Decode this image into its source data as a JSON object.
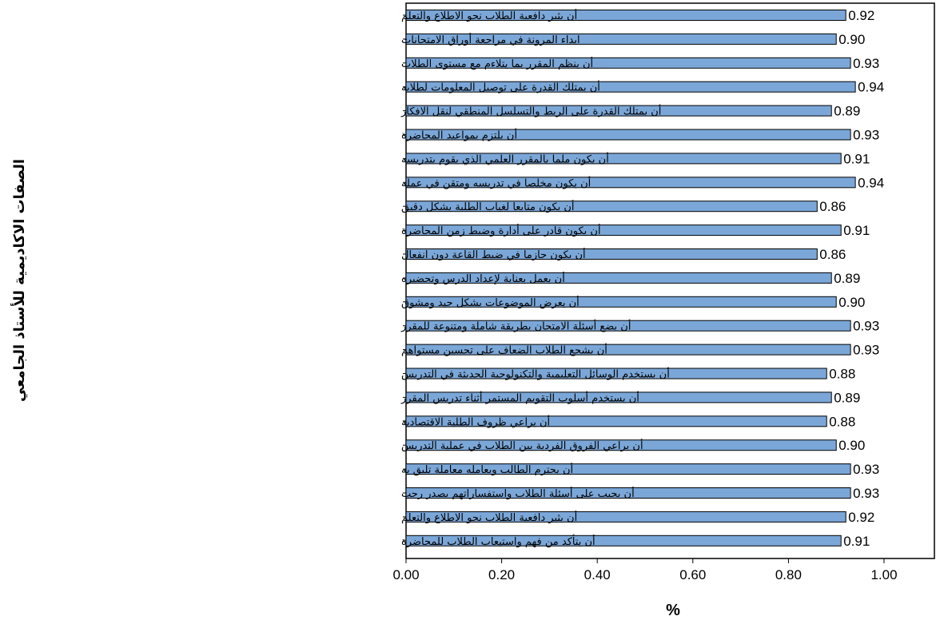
{
  "chart_data": {
    "type": "bar",
    "orientation": "horizontal",
    "title": "",
    "xlabel": "%",
    "ylabel": "الصفات الاكاديمية للأستاذ الجامعي",
    "xlim": [
      0,
      1.0
    ],
    "xticks": [
      "0.00",
      "0.20",
      "0.40",
      "0.60",
      "0.80",
      "1.00"
    ],
    "grid": false,
    "bar_color": "#7ba7d8",
    "categories": [
      "أن يثير دافعية الطلاب نحو الاطلاع والتعلم",
      "ابداء المرونة في مراجعة أوراق الامتحانات",
      "أن ينظم المقرر بما يتلاءم مع مستوى الطلاب",
      "أن يمتلك القدرة على توصيل المعلومات لطلابه",
      "أن يمتلك القدرة على الربط والتسلسل المنطقي لنقل الافكار",
      "أن يلتزم بمواعيد المحاضرة",
      "أن يكون ملما بالمقرر العلمي الذي يقوم بتدريسه",
      "أن يكون مخلصا في تدريسه ومتقن في عمله",
      "أن يكون متابعا لغياب الطلبة بشكل دقيق",
      "أن يكون قادر على أدارة وضبط زمن المحاضرة",
      "أن يكون حازما في ضبط القاعة دون انفعال",
      "أن يعمل بعناية لإعداد الدرس وتحضيره",
      "أن يعرض الموضوعات بشكل جيد ومشوق",
      "أن يضع أسئلة الامتحان بطريقة شاملة ومتنوعة للمقرر",
      "أن يشجع الطلاب الضعاف على تحسين مستواهم",
      "أن يستخدم الوسائل التعليمية والتكنولوجية الحديثة في التدريس",
      "أن يستخدم أسلوب التقويم المستمر أثناء تدريس المقرر",
      "أن يراعي ظروف الطلبة الاقتصادية",
      "أن يراعي الفروق الفردية بين الطلاب في عملية التدريس",
      "أن يحترم الطالب ويعامله معاملة تليق به",
      "أن يجيب على أسئلة الطلاب واستفساراتهم بصدر رحب",
      "أن يثير دافعية الطلاب نحو الاطلاع والتعلم",
      "أن يتأكد من فهم واستيعاب الطلاب للمحاضرة"
    ],
    "values": [
      0.92,
      0.9,
      0.93,
      0.94,
      0.89,
      0.93,
      0.91,
      0.94,
      0.86,
      0.91,
      0.86,
      0.89,
      0.9,
      0.93,
      0.93,
      0.88,
      0.89,
      0.88,
      0.9,
      0.93,
      0.93,
      0.92,
      0.91
    ],
    "value_labels": [
      "0.92",
      "0.90",
      "0.93",
      "0.94",
      "0.89",
      "0.93",
      "0.91",
      "0.94",
      "0.86",
      "0.91",
      "0.86",
      "0.89",
      "0.90",
      "0.93",
      "0.93",
      "0.88",
      "0.89",
      "0.88",
      "0.90",
      "0.93",
      "0.93",
      "0.92",
      "0.91"
    ]
  }
}
